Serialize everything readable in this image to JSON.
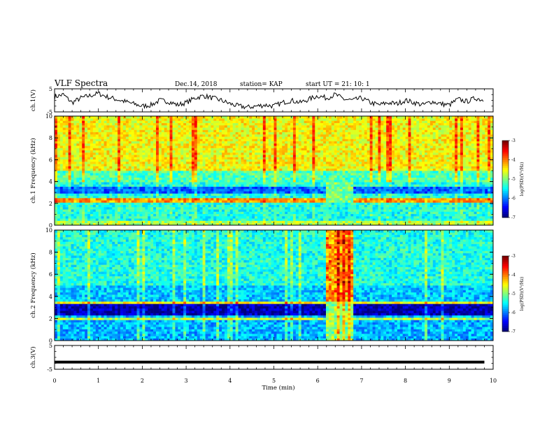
{
  "header": {
    "title": "VLF Spectra",
    "date": "Dec.14, 2018",
    "station": "station= KAP",
    "start": "start  UT =   21: 10: 1"
  },
  "colors": {
    "background": "#ffffff",
    "axes": "#000000",
    "trace": "#000000",
    "colormap": [
      "#00007f",
      "#0000ff",
      "#007fff",
      "#00ffff",
      "#7fff7f",
      "#ffff00",
      "#ff7f00",
      "#ff0000",
      "#7f0000"
    ]
  },
  "chart_data": [
    {
      "type": "line",
      "name": "ch1-waveform-panel",
      "ylabel": "ch.1(V)",
      "ylim": [
        -5,
        5
      ],
      "yticks": [
        "5",
        "-5"
      ],
      "xlim": [
        0,
        10
      ],
      "x_sampled": [
        0.0,
        0.2,
        0.4,
        0.6,
        0.8,
        1.0,
        1.2,
        1.4,
        1.6,
        1.8,
        2.0,
        2.2,
        2.4,
        2.6,
        2.8,
        3.0,
        3.2,
        3.4,
        3.6,
        3.8,
        4.0,
        4.2,
        4.4,
        4.6,
        4.8,
        5.0,
        5.2,
        5.4,
        5.6,
        5.8,
        6.0,
        6.2,
        6.4,
        6.6,
        6.8,
        7.0,
        7.2,
        7.4,
        7.6,
        7.8,
        8.0,
        8.2,
        8.4,
        8.6,
        8.8,
        9.0,
        9.2,
        9.4,
        9.6,
        9.8
      ],
      "y_sampled": [
        1.5,
        2.5,
        -1.0,
        1.0,
        2.0,
        3.0,
        1.5,
        0.5,
        -0.5,
        -1.5,
        -2.5,
        -2.0,
        0.0,
        -0.5,
        -2.0,
        -1.0,
        1.0,
        2.0,
        1.0,
        0.0,
        -1.5,
        -2.5,
        -3.0,
        -2.5,
        -2.0,
        -2.5,
        -1.0,
        0.0,
        -1.0,
        0.5,
        2.0,
        1.0,
        2.5,
        0.5,
        0.0,
        1.0,
        -1.0,
        -2.0,
        -1.0,
        -1.5,
        0.0,
        -1.0,
        -2.0,
        -0.5,
        -1.5,
        -2.0,
        0.5,
        -0.5,
        1.0,
        0.0
      ]
    },
    {
      "type": "heatmap",
      "name": "ch1-spectrogram",
      "ylabel": "ch.1 Frequency (kHz)",
      "ylim": [
        0,
        10
      ],
      "yticks": [
        "0",
        "2",
        "4",
        "6",
        "8",
        "10"
      ],
      "xlim": [
        0,
        10
      ],
      "colorbar": {
        "label": "log(PSD)(V²/Hz)",
        "range": [
          -7,
          -3
        ],
        "ticks": [
          "-3",
          "-4",
          "-5",
          "-6",
          "-7"
        ]
      },
      "features": [
        {
          "desc": "noise floor 0-0.3 kHz",
          "level": -5.5
        },
        {
          "desc": "lines near 2.2-2.5 kHz",
          "level": -3.5
        },
        {
          "desc": "broadband 5-10 kHz",
          "level": -4.2
        },
        {
          "desc": "3-3.5 kHz band",
          "level": -6.2
        }
      ]
    },
    {
      "type": "heatmap",
      "name": "ch2-spectrogram",
      "ylabel": "ch.2 Frequency (kHz)",
      "ylim": [
        0,
        10
      ],
      "yticks": [
        "0",
        "2",
        "4",
        "6",
        "8",
        "10"
      ],
      "xlim": [
        0,
        10
      ],
      "colorbar": {
        "label": "log(PSD)(V²/Hz)",
        "range": [
          -7,
          -3
        ],
        "ticks": [
          "-3",
          "-4",
          "-5",
          "-6",
          "-7"
        ]
      },
      "features": [
        {
          "desc": "quiet 2.5-3.2 kHz",
          "level": -6.8
        },
        {
          "desc": "line near 3.4 kHz",
          "level": -4.0
        },
        {
          "desc": "interference burst 6.2-6.8 min",
          "level": -3.8
        }
      ]
    },
    {
      "type": "line",
      "name": "ch3-waveform-panel",
      "ylabel": "ch.3(V)",
      "ylim": [
        -5,
        5
      ],
      "yticks": [
        "5",
        "-5"
      ],
      "xlim": [
        0,
        10
      ],
      "x": [
        0.0,
        9.8
      ],
      "y": [
        -2.0,
        -2.0
      ]
    }
  ],
  "xaxis": {
    "label": "Time (min)",
    "ticks": [
      "0",
      "1",
      "2",
      "3",
      "4",
      "5",
      "6",
      "7",
      "8",
      "9",
      "10"
    ]
  }
}
